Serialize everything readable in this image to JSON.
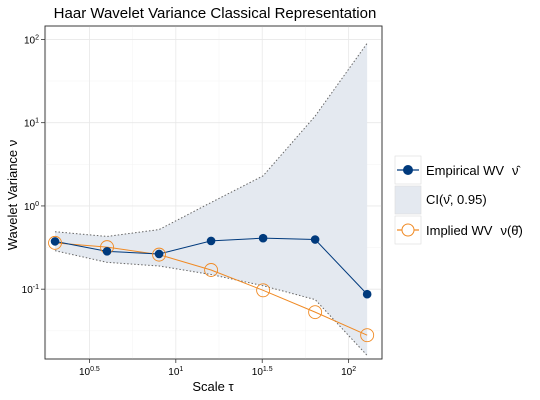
{
  "chart_data": {
    "type": "line",
    "title": "Haar Wavelet Variance Classical Representation",
    "xlabel": "Scale τ",
    "ylabel": "Wavelet Variance ν",
    "x_scale": "log10",
    "y_scale": "log10",
    "xlim": [
      1.75,
      156
    ],
    "ylim": [
      0.0145,
      145
    ],
    "x_ticks": [
      {
        "value": 3.1623,
        "base": "10",
        "exp": "0.5"
      },
      {
        "value": 10,
        "base": "10",
        "exp": "1"
      },
      {
        "value": 31.623,
        "base": "10",
        "exp": "1.5"
      },
      {
        "value": 100,
        "base": "10",
        "exp": "2"
      }
    ],
    "y_ticks": [
      {
        "value": 0.1,
        "base": "10",
        "exp": "-1"
      },
      {
        "value": 1,
        "base": "10",
        "exp": "0"
      },
      {
        "value": 10,
        "base": "10",
        "exp": "1"
      },
      {
        "value": 100,
        "base": "10",
        "exp": "2"
      }
    ],
    "grid": true,
    "legend_position": "right",
    "x": [
      2,
      4,
      8,
      16,
      32,
      64,
      128
    ],
    "series": [
      {
        "name": "Empirical WV",
        "kind": "line",
        "color": "#003a7d",
        "values": [
          0.375,
          0.285,
          0.265,
          0.38,
          0.41,
          0.395,
          0.087
        ]
      },
      {
        "name": "CI(ν̂, 0.95)",
        "kind": "band",
        "fill": "#e4e9f0",
        "stroke": "#666666",
        "lower": [
          0.29,
          0.21,
          0.19,
          0.15,
          0.11,
          0.075,
          0.016
        ],
        "upper": [
          0.49,
          0.43,
          0.52,
          1.1,
          2.3,
          12,
          90
        ]
      },
      {
        "name": "Implied WV",
        "kind": "line",
        "color": "#f08a24",
        "values": [
          0.36,
          0.32,
          0.26,
          0.17,
          0.097,
          0.053,
          0.028
        ]
      }
    ],
    "legend": {
      "items": [
        {
          "label": "Empirical WV",
          "math": "ν̂"
        },
        {
          "label": "CI(ν̂, 0.95)",
          "math": ""
        },
        {
          "label": "Implied WV",
          "math": "ν(θ̂)"
        }
      ]
    }
  }
}
